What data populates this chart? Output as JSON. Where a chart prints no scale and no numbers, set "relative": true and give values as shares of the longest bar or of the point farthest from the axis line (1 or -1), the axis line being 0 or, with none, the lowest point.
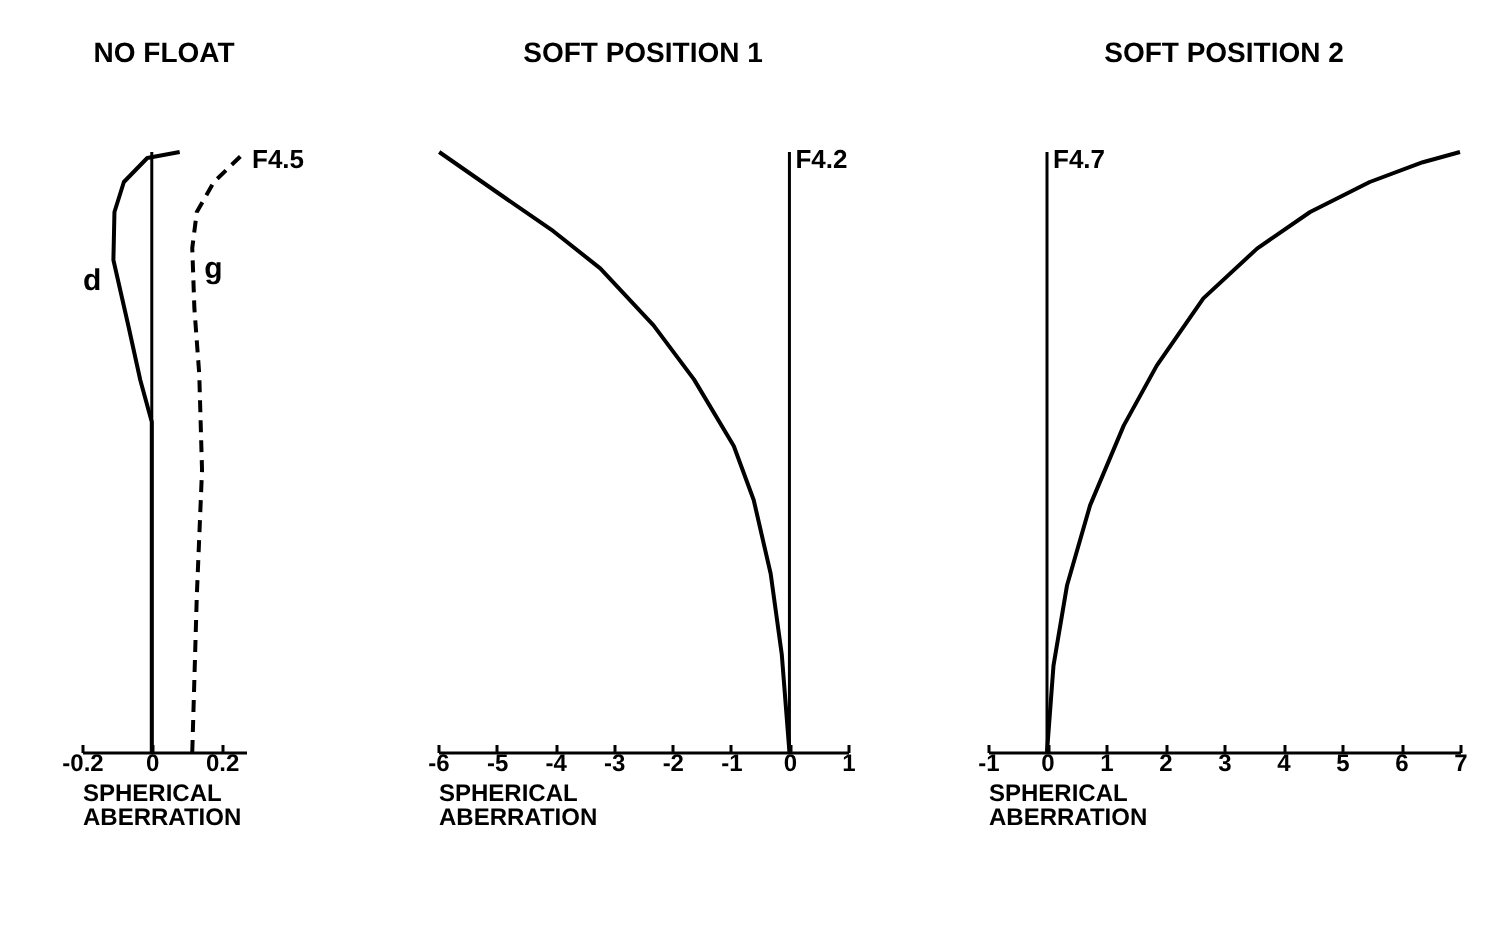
{
  "chart_data": [
    {
      "type": "line",
      "title": "NO FLOAT",
      "xlabel": "SPHERICAL ABERRATION",
      "relative": true,
      "xlim": [
        -0.2,
        0.27
      ],
      "xticks": [
        -0.2,
        0,
        0.2
      ],
      "grid": false,
      "legend": false,
      "marker": "none",
      "ref_lines": [
        {
          "axis": "x",
          "value": 0
        }
      ],
      "annotations": [
        "F4.5"
      ],
      "series": [
        {
          "name": "d",
          "color": "#000000",
          "line_style": "solid",
          "x": [
            0,
            0,
            0,
            -0.033,
            -0.067,
            -0.11,
            -0.107,
            -0.08,
            -0.013,
            0.08
          ],
          "values": [
            0,
            0.27,
            0.55,
            0.62,
            0.71,
            0.82,
            0.9,
            0.95,
            0.99,
            1
          ]
        },
        {
          "name": "g",
          "color": "#000000",
          "line_style": "dashed",
          "x": [
            0.116,
            0.129,
            0.144,
            0.136,
            0.122,
            0.116,
            0.129,
            0.178,
            0.267
          ],
          "values": [
            0,
            0.26,
            0.47,
            0.63,
            0.74,
            0.84,
            0.9,
            0.95,
            1
          ]
        }
      ]
    },
    {
      "type": "line",
      "title": "SOFT POSITION 1",
      "xlabel": "SPHERICAL ABERRATION",
      "relative": true,
      "xlim": [
        -6,
        1
      ],
      "xticks": [
        -6,
        -5,
        -4,
        -3,
        -2,
        -1,
        0,
        1
      ],
      "grid": false,
      "legend": false,
      "marker": "none",
      "ref_lines": [
        {
          "axis": "x",
          "value": 0,
          "label": "F4.2"
        }
      ],
      "series": [
        {
          "color": "#000000",
          "line_style": "solid",
          "x": [
            -5.98,
            -4.95,
            -4.03,
            -3.23,
            -2.32,
            -1.63,
            -0.95,
            -0.61,
            -0.32,
            -0.13,
            0
          ],
          "values": [
            1,
            0.93,
            0.868,
            0.806,
            0.711,
            0.621,
            0.51,
            0.42,
            0.297,
            0.162,
            0
          ]
        }
      ]
    },
    {
      "type": "line",
      "title": "SOFT POSITION 2",
      "xlabel": "SPHERICAL ABERRATION",
      "relative": true,
      "xlim": [
        -1,
        7
      ],
      "xticks": [
        -1,
        0,
        1,
        2,
        3,
        4,
        5,
        6,
        7
      ],
      "grid": false,
      "legend": false,
      "marker": "none",
      "ref_lines": [
        {
          "axis": "x",
          "value": 0,
          "label": "F4.7"
        }
      ],
      "series": [
        {
          "color": "#000000",
          "line_style": "solid",
          "x": [
            0,
            0.11,
            0.34,
            0.73,
            1.3,
            1.86,
            2.65,
            3.56,
            4.46,
            5.47,
            6.37,
            7
          ],
          "values": [
            0,
            0.144,
            0.278,
            0.411,
            0.544,
            0.644,
            0.756,
            0.839,
            0.9,
            0.95,
            0.983,
            1
          ]
        }
      ]
    }
  ]
}
